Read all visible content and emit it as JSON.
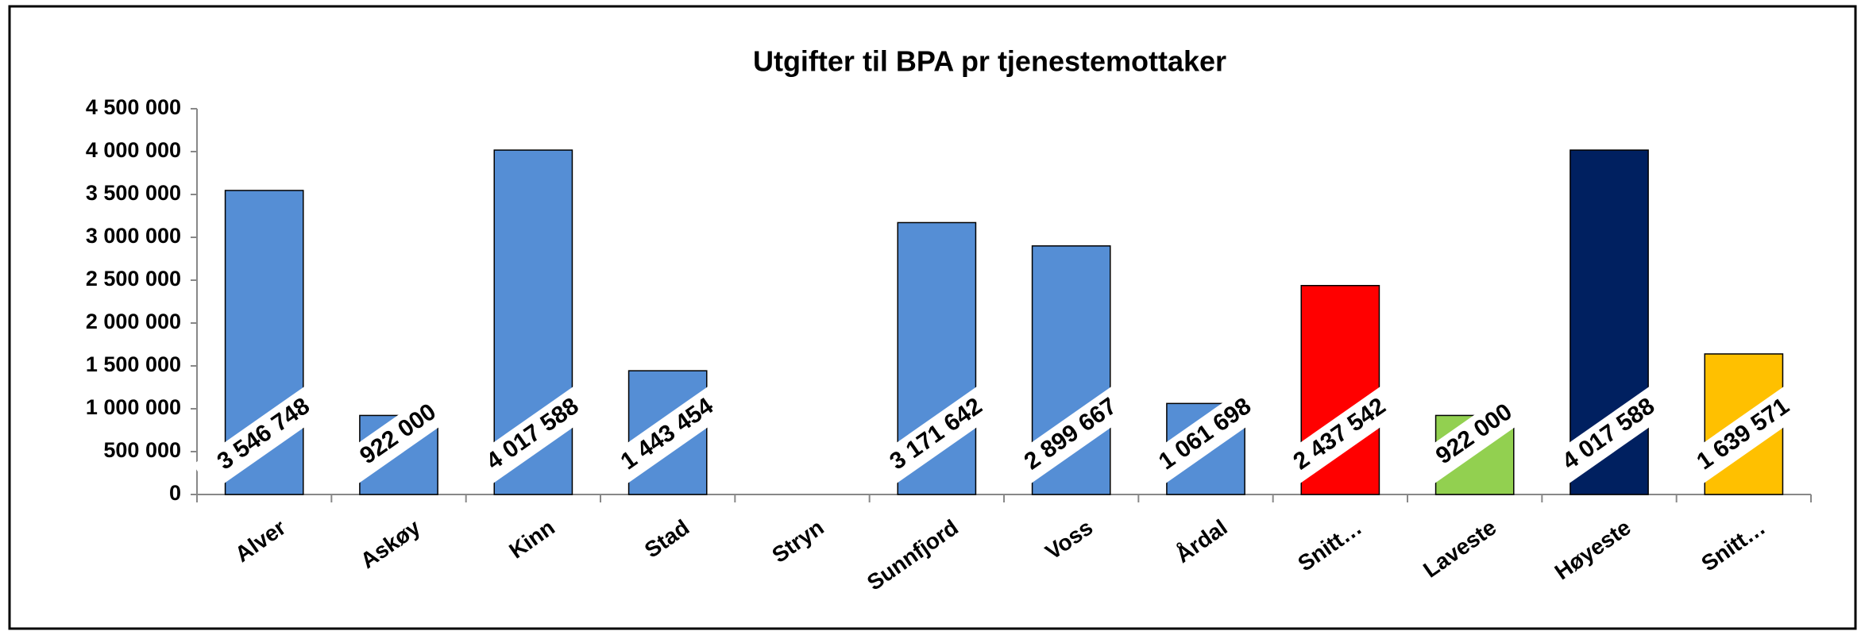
{
  "chart_data": {
    "type": "bar",
    "title": "Utgifter til BPA pr tjenestemottaker",
    "categories": [
      "Alver",
      "Askøy",
      "Kinn",
      "Stad",
      "Stryn",
      "Sunnfjord",
      "Voss",
      "Årdal",
      "Snitt…",
      "Laveste",
      "Høyeste",
      "Snitt…"
    ],
    "values": [
      3546748,
      922000,
      4017588,
      1443454,
      null,
      3171642,
      2899667,
      1061698,
      2437542,
      922000,
      4017588,
      1639571
    ],
    "value_labels": [
      "3 546 748",
      "922 000",
      "4 017 588",
      "1 443 454",
      null,
      "3 171 642",
      "2 899 667",
      "1 061 698",
      "2 437 542",
      "922 000",
      "4 017 588",
      "1 639 571"
    ],
    "colors": [
      "#558ed5",
      "#558ed5",
      "#558ed5",
      "#558ed5",
      "#558ed5",
      "#558ed5",
      "#558ed5",
      "#558ed5",
      "#ff0000",
      "#92d050",
      "#002060",
      "#ffc000"
    ],
    "ylim": [
      0,
      4500000
    ],
    "yticks": [
      0,
      {
        "value": 500000,
        "label": "500 000"
      },
      {
        "value": 1000000,
        "label": "1 000 000"
      },
      {
        "value": 1500000,
        "label": "1 500 000"
      },
      {
        "value": 2000000,
        "label": "2 000 000"
      },
      {
        "value": 2500000,
        "label": "2 500 000"
      },
      {
        "value": 3000000,
        "label": "3 000 000"
      },
      {
        "value": 3500000,
        "label": "3 500 000"
      },
      {
        "value": 4000000,
        "label": "4 000 000"
      },
      {
        "value": 4500000,
        "label": "4 500 000"
      }
    ],
    "grid": false
  }
}
